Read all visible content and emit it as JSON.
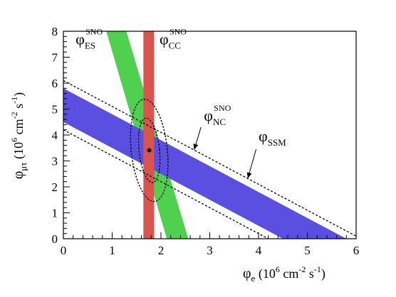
{
  "chart_data": {
    "type": "band_plot",
    "title": "",
    "xlabel": {
      "main": "φ",
      "sub": "e",
      "unit_pre": " (10",
      "unit_exp": "6",
      "unit_mid": " cm",
      "unit_exp2": "-2",
      "unit_mid2": " s",
      "unit_exp3": "-1",
      "unit_post": ")"
    },
    "ylabel": {
      "main": "φ",
      "sub": "μτ",
      "unit_pre": " (10",
      "unit_exp": "6",
      "unit_mid": " cm",
      "unit_exp2": "-2",
      "unit_mid2": " s",
      "unit_exp3": "-1",
      "unit_post": ")"
    },
    "xlim": [
      0,
      6
    ],
    "ylim": [
      0,
      8
    ],
    "x_major_ticks": [
      0,
      1,
      2,
      3,
      4,
      5,
      6
    ],
    "y_major_ticks": [
      0,
      1,
      2,
      3,
      4,
      5,
      6,
      7,
      8
    ],
    "x_tick_labels": [
      "0",
      "1",
      "2",
      "3",
      "4",
      "5",
      "6"
    ],
    "y_tick_labels": [
      "0",
      "1",
      "2",
      "3",
      "4",
      "5",
      "6",
      "7",
      "8"
    ],
    "grid": false,
    "bands": {
      "cc": {
        "color": "#d9534f",
        "x_min": 1.64,
        "x_max": 1.86
      },
      "es": {
        "color": "#4fd14f",
        "slope": -6.45,
        "x_at_y8": [
          0.88,
          1.29
        ],
        "x_at_y0": [
          2.12,
          2.56
        ]
      },
      "nc": {
        "color": "#5a4fe0",
        "upper_line": [
          [
            0,
            5.8
          ],
          [
            5.8,
            0
          ]
        ],
        "lower_line": [
          [
            0,
            4.5
          ],
          [
            4.5,
            0
          ]
        ]
      }
    },
    "ssm_lines": {
      "upper": [
        [
          0,
          6.1
        ],
        [
          6.1,
          0
        ]
      ],
      "lower": [
        [
          0,
          4.2
        ],
        [
          4.2,
          0
        ]
      ]
    },
    "best_fit_point": {
      "x": 1.76,
      "y": 3.41
    },
    "contours": [
      {
        "center_x": 1.76,
        "center_y": 3.41,
        "semi_major": 1.25,
        "semi_minor": 0.21,
        "tilt_deg": -6
      },
      {
        "center_x": 1.76,
        "center_y": 3.41,
        "semi_major": 1.98,
        "semi_minor": 0.37,
        "tilt_deg": -6
      }
    ],
    "labels": [
      {
        "id": "es",
        "main": "φ",
        "sub": "ES",
        "sup": "SNO",
        "x": 0.25,
        "y": 7.5
      },
      {
        "id": "cc",
        "main": "φ",
        "sub": "CC",
        "sup": "SNO",
        "x": 1.97,
        "y": 7.5
      },
      {
        "id": "nc",
        "main": "φ",
        "sub": "NC",
        "sup": "SNO",
        "x": 2.88,
        "y": 4.55
      },
      {
        "id": "ssm",
        "main": "φ",
        "sub": "SSM",
        "sup": "",
        "x": 4.0,
        "y": 3.75
      }
    ],
    "arrows": [
      {
        "from": [
          2.82,
          4.3
        ],
        "to": [
          2.68,
          3.43
        ]
      },
      {
        "from": [
          3.95,
          3.45
        ],
        "to": [
          3.78,
          2.33
        ]
      }
    ]
  }
}
